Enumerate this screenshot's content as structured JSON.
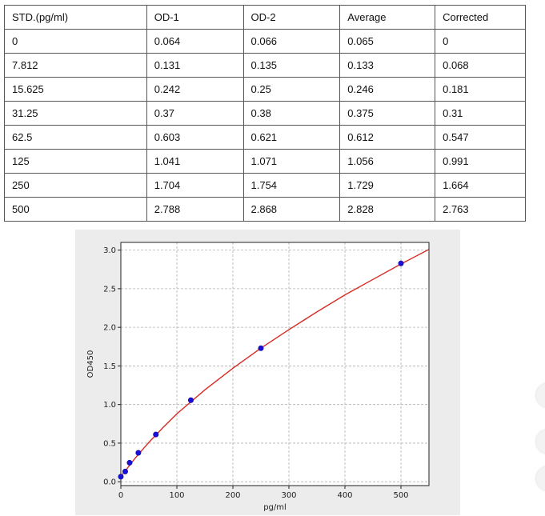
{
  "table": {
    "headers": [
      "STD.(pg/ml)",
      "OD-1",
      "OD-2",
      "Average",
      "Corrected"
    ],
    "rows": [
      [
        "0",
        "0.064",
        "0.066",
        "0.065",
        "0"
      ],
      [
        "7.812",
        "0.131",
        "0.135",
        "0.133",
        "0.068"
      ],
      [
        "15.625",
        "0.242",
        "0.25",
        "0.246",
        "0.181"
      ],
      [
        "31.25",
        "0.37",
        "0.38",
        "0.375",
        "0.31"
      ],
      [
        "62.5",
        "0.603",
        "0.621",
        "0.612",
        "0.547"
      ],
      [
        "125",
        "1.041",
        "1.071",
        "1.056",
        "0.991"
      ],
      [
        "250",
        "1.704",
        "1.754",
        "1.729",
        "1.664"
      ],
      [
        "500",
        "2.788",
        "2.868",
        "2.828",
        "2.763"
      ]
    ]
  },
  "chart_data": {
    "type": "scatter",
    "title": "",
    "xlabel": "pg/ml",
    "ylabel": "OD450",
    "xlim": [
      0,
      550
    ],
    "ylim": [
      -0.05,
      3.1
    ],
    "xticks": [
      0,
      100,
      200,
      300,
      400,
      500
    ],
    "yticks": [
      0.0,
      0.5,
      1.0,
      1.5,
      2.0,
      2.5,
      3.0
    ],
    "grid": true,
    "series": [
      {
        "kind": "points",
        "color": "#1a0fd6",
        "x": [
          0,
          7.812,
          15.625,
          31.25,
          62.5,
          125,
          250,
          500
        ],
        "y": [
          0.065,
          0.133,
          0.246,
          0.375,
          0.612,
          1.056,
          1.729,
          2.828
        ]
      },
      {
        "kind": "fit-curve",
        "color": "#d62b24",
        "x": [
          0,
          10,
          25,
          50,
          75,
          100,
          150,
          200,
          250,
          300,
          350,
          400,
          450,
          500,
          550
        ],
        "y": [
          0.07,
          0.16,
          0.3,
          0.51,
          0.7,
          0.88,
          1.19,
          1.47,
          1.73,
          1.97,
          2.2,
          2.42,
          2.62,
          2.82,
          3.01
        ]
      }
    ]
  }
}
